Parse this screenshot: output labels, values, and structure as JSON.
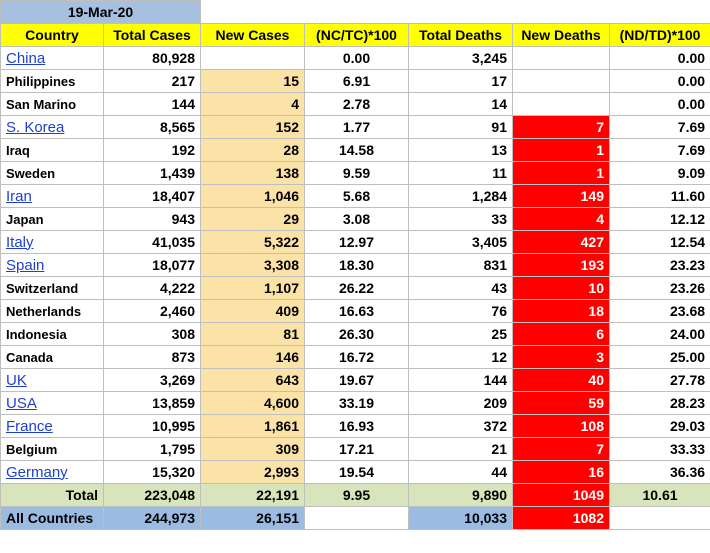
{
  "date": "19-Mar-20",
  "headers": {
    "country": "Country",
    "total_cases": "Total Cases",
    "new_cases": "New Cases",
    "nc_tc": "(NC/TC)*100",
    "total_deaths": "Total Deaths",
    "new_deaths": "New Deaths",
    "nd_td": "(ND/TD)*100"
  },
  "rows": [
    {
      "country": "China",
      "link": true,
      "total_cases": "80,928",
      "new_cases": "",
      "nc_tc": "0.00",
      "total_deaths": "3,245",
      "new_deaths": "",
      "nd_td": "0.00"
    },
    {
      "country": "Philippines",
      "link": false,
      "total_cases": "217",
      "new_cases": "15",
      "nc_tc": "6.91",
      "total_deaths": "17",
      "new_deaths": "",
      "nd_td": "0.00"
    },
    {
      "country": "San Marino",
      "link": false,
      "total_cases": "144",
      "new_cases": "4",
      "nc_tc": "2.78",
      "total_deaths": "14",
      "new_deaths": "",
      "nd_td": "0.00"
    },
    {
      "country": "S. Korea",
      "link": true,
      "total_cases": "8,565",
      "new_cases": "152",
      "nc_tc": "1.77",
      "total_deaths": "91",
      "new_deaths": "7",
      "nd_td": "7.69"
    },
    {
      "country": "Iraq",
      "link": false,
      "total_cases": "192",
      "new_cases": "28",
      "nc_tc": "14.58",
      "total_deaths": "13",
      "new_deaths": "1",
      "nd_td": "7.69"
    },
    {
      "country": "Sweden",
      "link": false,
      "total_cases": "1,439",
      "new_cases": "138",
      "nc_tc": "9.59",
      "total_deaths": "11",
      "new_deaths": "1",
      "nd_td": "9.09"
    },
    {
      "country": "Iran",
      "link": true,
      "total_cases": "18,407",
      "new_cases": "1,046",
      "nc_tc": "5.68",
      "total_deaths": "1,284",
      "new_deaths": "149",
      "nd_td": "11.60"
    },
    {
      "country": "Japan",
      "link": false,
      "total_cases": "943",
      "new_cases": "29",
      "nc_tc": "3.08",
      "total_deaths": "33",
      "new_deaths": "4",
      "nd_td": "12.12"
    },
    {
      "country": "Italy",
      "link": true,
      "total_cases": "41,035",
      "new_cases": "5,322",
      "nc_tc": "12.97",
      "total_deaths": "3,405",
      "new_deaths": "427",
      "nd_td": "12.54"
    },
    {
      "country": "Spain",
      "link": true,
      "total_cases": "18,077",
      "new_cases": "3,308",
      "nc_tc": "18.30",
      "total_deaths": "831",
      "new_deaths": "193",
      "nd_td": "23.23"
    },
    {
      "country": "Switzerland",
      "link": false,
      "total_cases": "4,222",
      "new_cases": "1,107",
      "nc_tc": "26.22",
      "total_deaths": "43",
      "new_deaths": "10",
      "nd_td": "23.26"
    },
    {
      "country": "Netherlands",
      "link": false,
      "total_cases": "2,460",
      "new_cases": "409",
      "nc_tc": "16.63",
      "total_deaths": "76",
      "new_deaths": "18",
      "nd_td": "23.68"
    },
    {
      "country": "Indonesia",
      "link": false,
      "total_cases": "308",
      "new_cases": "81",
      "nc_tc": "26.30",
      "total_deaths": "25",
      "new_deaths": "6",
      "nd_td": "24.00"
    },
    {
      "country": "Canada",
      "link": false,
      "total_cases": "873",
      "new_cases": "146",
      "nc_tc": "16.72",
      "total_deaths": "12",
      "new_deaths": "3",
      "nd_td": "25.00"
    },
    {
      "country": "UK",
      "link": true,
      "total_cases": "3,269",
      "new_cases": "643",
      "nc_tc": "19.67",
      "total_deaths": "144",
      "new_deaths": "40",
      "nd_td": "27.78"
    },
    {
      "country": "USA",
      "link": true,
      "total_cases": "13,859",
      "new_cases": "4,600",
      "nc_tc": "33.19",
      "total_deaths": "209",
      "new_deaths": "59",
      "nd_td": "28.23"
    },
    {
      "country": "France",
      "link": true,
      "total_cases": "10,995",
      "new_cases": "1,861",
      "nc_tc": "16.93",
      "total_deaths": "372",
      "new_deaths": "108",
      "nd_td": "29.03"
    },
    {
      "country": "Belgium",
      "link": false,
      "total_cases": "1,795",
      "new_cases": "309",
      "nc_tc": "17.21",
      "total_deaths": "21",
      "new_deaths": "7",
      "nd_td": "33.33"
    },
    {
      "country": "Germany",
      "link": true,
      "total_cases": "15,320",
      "new_cases": "2,993",
      "nc_tc": "19.54",
      "total_deaths": "44",
      "new_deaths": "16",
      "nd_td": "36.36"
    }
  ],
  "total": {
    "label": "Total",
    "total_cases": "223,048",
    "new_cases": "22,191",
    "nc_tc": "9.95",
    "total_deaths": "9,890",
    "new_deaths": "1049",
    "nd_td": "10.61"
  },
  "all": {
    "label": "All Countries",
    "total_cases": "244,973",
    "new_cases": "26,151",
    "total_deaths": "10,033",
    "new_deaths": "1082"
  },
  "colors": {
    "header_yellow": "#ffff00",
    "new_cases_fill": "#fbe3a7",
    "new_deaths_fill": "#ff0000",
    "total_fill": "#d8e4bc",
    "all_fill": "#9bbbe3",
    "link_blue": "#1f3fd1"
  }
}
